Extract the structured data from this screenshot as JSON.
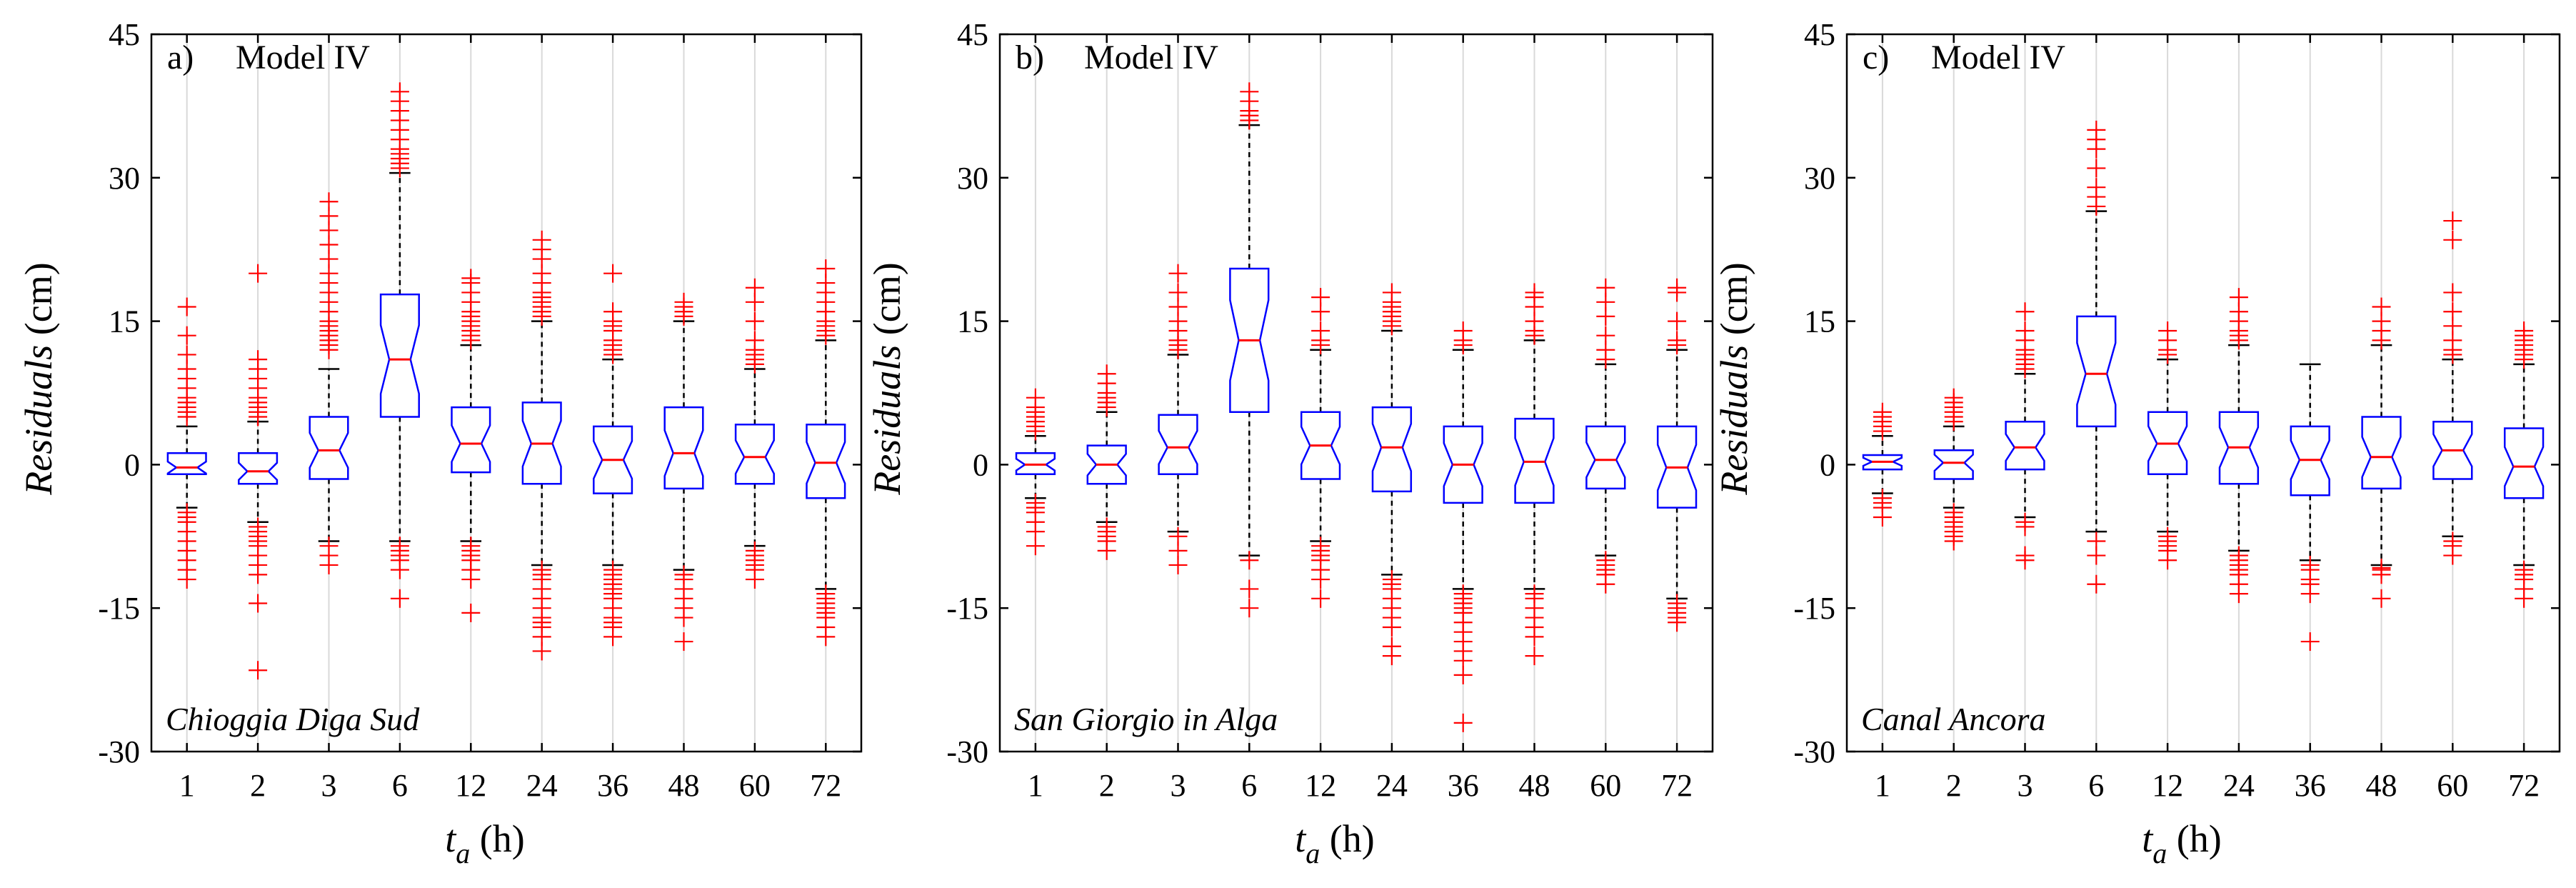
{
  "chart_data": [
    {
      "type": "boxplot",
      "panel_label": "a)",
      "model_label": "Model IV",
      "station": "Chioggia Diga Sud",
      "ylabel_italic": "Residuals",
      "ylabel_unit": "(cm)",
      "xlabel_var": "t",
      "xlabel_sub": "a",
      "xlabel_unit": "(h)",
      "ylim": [
        -30,
        45
      ],
      "yticks": [
        "-30",
        "-15",
        "0",
        "15",
        "30",
        "45"
      ],
      "categories": [
        "1",
        "2",
        "3",
        "6",
        "12",
        "24",
        "36",
        "48",
        "60",
        "72"
      ],
      "boxes": [
        {
          "q1": -1.0,
          "median": -0.3,
          "q3": 1.2,
          "wlo": -4.5,
          "whi": 4.0,
          "outliers": [
            -12,
            -11,
            -10,
            -9,
            -8,
            -7,
            -6,
            -5.5,
            -5,
            5,
            5.5,
            6,
            6.5,
            7,
            8,
            9,
            10,
            11.5,
            13.5,
            16.5
          ]
        },
        {
          "q1": -2.0,
          "median": -0.7,
          "q3": 1.2,
          "wlo": -6.0,
          "whi": 4.5,
          "outliers": [
            -21.5,
            -14.5,
            -11.5,
            -10.5,
            -9.5,
            -8.5,
            -8,
            -7.5,
            -7,
            -6.5,
            5,
            5.5,
            6,
            6.5,
            7,
            8,
            9,
            10,
            11,
            20
          ]
        },
        {
          "q1": -1.5,
          "median": 1.5,
          "q3": 5.0,
          "wlo": -8.0,
          "whi": 10.0,
          "outliers": [
            -10.5,
            -9.5,
            -8.5,
            12,
            12.5,
            13,
            13.5,
            14,
            14.5,
            15,
            16,
            17,
            18,
            19,
            20,
            21.5,
            23,
            24.5,
            26,
            27.5
          ]
        },
        {
          "q1": 5.0,
          "median": 11.0,
          "q3": 17.8,
          "wlo": -8.0,
          "whi": 30.5,
          "outliers": [
            -14,
            -11,
            -10,
            -9.5,
            -9,
            -8.5,
            31,
            31.5,
            32,
            32.5,
            33,
            34,
            35,
            36,
            37,
            38,
            39
          ]
        },
        {
          "q1": -0.8,
          "median": 2.2,
          "q3": 6.0,
          "wlo": -8.0,
          "whi": 12.5,
          "outliers": [
            -15.5,
            -12,
            -11,
            -10,
            -9.5,
            -9,
            -8.5,
            13,
            13.5,
            14,
            14.5,
            15,
            15.5,
            16,
            17,
            18,
            19,
            19.5
          ]
        },
        {
          "q1": -2.0,
          "median": 2.2,
          "q3": 6.5,
          "wlo": -10.5,
          "whi": 15.0,
          "outliers": [
            -19.5,
            -18,
            -17,
            -16.5,
            -16,
            -15,
            -14,
            -13,
            -12,
            -11.5,
            -11,
            15.5,
            16,
            16.5,
            17,
            17.5,
            18,
            19,
            20,
            21.5,
            22.5,
            23.5
          ]
        },
        {
          "q1": -3.0,
          "median": 0.5,
          "q3": 4.0,
          "wlo": -10.5,
          "whi": 11.0,
          "outliers": [
            -18,
            -17,
            -16.5,
            -16,
            -15,
            -14,
            -13.5,
            -13,
            -12.5,
            -12,
            -11.5,
            -11,
            11.5,
            12,
            12.5,
            13,
            14,
            14.5,
            15,
            16,
            20
          ]
        },
        {
          "q1": -2.5,
          "median": 1.2,
          "q3": 6.0,
          "wlo": -11.0,
          "whi": 15.0,
          "outliers": [
            -18.5,
            -16,
            -15,
            -14,
            -13,
            -12,
            -11.5,
            15.5,
            16,
            16.5,
            17
          ]
        },
        {
          "q1": -2.0,
          "median": 0.8,
          "q3": 4.2,
          "wlo": -8.5,
          "whi": 10.0,
          "outliers": [
            -12,
            -11,
            -10.5,
            -10,
            -9.5,
            -9,
            10.5,
            11,
            11.5,
            12,
            13,
            15,
            17,
            18.5
          ]
        },
        {
          "q1": -3.5,
          "median": 0.2,
          "q3": 4.2,
          "wlo": -13.0,
          "whi": 13.0,
          "outliers": [
            -18,
            -17,
            -16,
            -15.5,
            -15,
            -14.5,
            -14,
            -13.5,
            13.5,
            14,
            14.5,
            15,
            16,
            17,
            18,
            19,
            20.5
          ]
        }
      ]
    },
    {
      "type": "boxplot",
      "panel_label": "b)",
      "model_label": "Model IV",
      "station": "San Giorgio in Alga",
      "ylabel_italic": "Residuals",
      "ylabel_unit": "(cm)",
      "xlabel_var": "t",
      "xlabel_sub": "a",
      "xlabel_unit": "(h)",
      "ylim": [
        -30,
        45
      ],
      "yticks": [
        "-30",
        "-15",
        "0",
        "15",
        "30",
        "45"
      ],
      "categories": [
        "1",
        "2",
        "3",
        "6",
        "12",
        "24",
        "36",
        "48",
        "60",
        "72"
      ],
      "boxes": [
        {
          "q1": -1.0,
          "median": 0.0,
          "q3": 1.2,
          "wlo": -3.5,
          "whi": 3.0,
          "outliers": [
            -8.5,
            -7,
            -6,
            -5,
            -4.5,
            -4,
            3.5,
            4,
            4.5,
            5,
            5.5,
            6,
            7
          ]
        },
        {
          "q1": -2.0,
          "median": 0.0,
          "q3": 2.0,
          "wlo": -6.0,
          "whi": 5.5,
          "outliers": [
            -9,
            -8,
            -7.5,
            -7,
            -6.5,
            6,
            6.5,
            7,
            7.5,
            8.5,
            9.5
          ]
        },
        {
          "q1": -1.0,
          "median": 1.8,
          "q3": 5.2,
          "wlo": -7.0,
          "whi": 11.5,
          "outliers": [
            -10.5,
            -9,
            -7.5,
            12,
            12.5,
            13,
            14,
            15,
            16.5,
            18,
            20
          ]
        },
        {
          "q1": 5.5,
          "median": 13.0,
          "q3": 20.5,
          "wlo": -9.5,
          "whi": 35.5,
          "outliers": [
            -15,
            -13,
            -10,
            36,
            36.5,
            37,
            38,
            39
          ]
        },
        {
          "q1": -1.5,
          "median": 2.0,
          "q3": 5.5,
          "wlo": -8.0,
          "whi": 12.0,
          "outliers": [
            -14,
            -12,
            -11,
            -10,
            -9.5,
            -9,
            -8.5,
            12.5,
            13,
            14,
            16,
            17.5
          ]
        },
        {
          "q1": -2.8,
          "median": 1.8,
          "q3": 6.0,
          "wlo": -11.5,
          "whi": 14.0,
          "outliers": [
            -20,
            -19,
            -17,
            -16,
            -15,
            -14,
            -13,
            -12.5,
            -12,
            14.5,
            15,
            15.5,
            16,
            16.5,
            17,
            18
          ]
        },
        {
          "q1": -4.0,
          "median": 0.0,
          "q3": 4.0,
          "wlo": -13.0,
          "whi": 12.0,
          "outliers": [
            -27,
            -22,
            -20.5,
            -19.5,
            -18.5,
            -17.5,
            -16.5,
            -15.5,
            -15,
            -14.5,
            -14,
            -13.5,
            12.5,
            13,
            14
          ]
        },
        {
          "q1": -4.0,
          "median": 0.3,
          "q3": 4.8,
          "wlo": -13.0,
          "whi": 13.0,
          "outliers": [
            -20,
            -18,
            -17,
            -16,
            -15,
            -14,
            -13.5,
            13.5,
            14,
            15,
            16.5,
            17.5,
            18
          ]
        },
        {
          "q1": -2.5,
          "median": 0.5,
          "q3": 4.0,
          "wlo": -9.5,
          "whi": 10.5,
          "outliers": [
            -12.5,
            -11.5,
            -11,
            -10.5,
            -10,
            11,
            12,
            13.5,
            15.5,
            17,
            18.5
          ]
        },
        {
          "q1": -4.5,
          "median": -0.3,
          "q3": 4.0,
          "wlo": -14.0,
          "whi": 12.0,
          "outliers": [
            -16.5,
            -16,
            -15.5,
            -15,
            -14.5,
            12.5,
            13,
            15,
            18,
            18.5
          ]
        }
      ]
    },
    {
      "type": "boxplot",
      "panel_label": "c)",
      "model_label": "Model IV",
      "station": "Canal Ancora",
      "ylabel_italic": "Residuals",
      "ylabel_unit": "(cm)",
      "xlabel_var": "t",
      "xlabel_sub": "a",
      "xlabel_unit": "(h)",
      "ylim": [
        -30,
        45
      ],
      "yticks": [
        "-30",
        "-15",
        "0",
        "15",
        "30",
        "45"
      ],
      "categories": [
        "1",
        "2",
        "3",
        "6",
        "12",
        "24",
        "36",
        "48",
        "60",
        "72"
      ],
      "boxes": [
        {
          "q1": -0.5,
          "median": 0.3,
          "q3": 1.0,
          "wlo": -3.0,
          "whi": 3.0,
          "outliers": [
            -5.5,
            -4.5,
            -4,
            -3.5,
            3.5,
            4,
            4.5,
            5,
            5.5
          ]
        },
        {
          "q1": -1.5,
          "median": 0.2,
          "q3": 1.5,
          "wlo": -4.5,
          "whi": 4.0,
          "outliers": [
            -8,
            -7.5,
            -7,
            -6.5,
            -6,
            -5.5,
            -5,
            4.5,
            5,
            5.5,
            6,
            6.5,
            7
          ]
        },
        {
          "q1": -0.5,
          "median": 1.8,
          "q3": 4.5,
          "wlo": -5.5,
          "whi": 9.5,
          "outliers": [
            -10,
            -9.5,
            -6.5,
            -6,
            10,
            10.5,
            11,
            11.5,
            12,
            13,
            14,
            16
          ]
        },
        {
          "q1": 4.0,
          "median": 9.5,
          "q3": 15.5,
          "wlo": -7.0,
          "whi": 26.5,
          "outliers": [
            -12.5,
            -9.5,
            -8,
            27,
            28,
            29,
            31,
            33,
            34,
            35
          ]
        },
        {
          "q1": -1.0,
          "median": 2.2,
          "q3": 5.5,
          "wlo": -7.0,
          "whi": 11.0,
          "outliers": [
            -10,
            -9,
            -8.5,
            -8,
            -7.5,
            11.5,
            12,
            13,
            14
          ]
        },
        {
          "q1": -2.0,
          "median": 1.8,
          "q3": 5.5,
          "wlo": -9.0,
          "whi": 12.5,
          "outliers": [
            -13.5,
            -12.5,
            -11.5,
            -11,
            -10.5,
            -10,
            -9.5,
            13,
            13.5,
            14,
            15,
            16,
            17.5
          ]
        },
        {
          "q1": -3.2,
          "median": 0.5,
          "q3": 4.0,
          "wlo": -10.0,
          "whi": 10.5,
          "outliers": [
            -18.5,
            -13.5,
            -12.5,
            -12,
            -11,
            -10.5
          ]
        },
        {
          "q1": -2.5,
          "median": 0.8,
          "q3": 5.0,
          "wlo": -10.5,
          "whi": 12.5,
          "outliers": [
            -14,
            -11.5,
            -11,
            -10.8,
            13,
            14,
            15,
            16.5
          ]
        },
        {
          "q1": -1.5,
          "median": 1.5,
          "q3": 4.5,
          "wlo": -7.5,
          "whi": 11.0,
          "outliers": [
            -9.5,
            -8.5,
            -8,
            11.5,
            12,
            13,
            14.5,
            16,
            18,
            23.5,
            25.5
          ]
        },
        {
          "q1": -3.5,
          "median": -0.2,
          "q3": 3.8,
          "wlo": -10.5,
          "whi": 10.5,
          "outliers": [
            -14,
            -13,
            -12,
            -11.5,
            -11,
            11,
            11.5,
            12,
            12.5,
            13,
            13.5,
            14
          ]
        }
      ]
    }
  ],
  "colors": {
    "box": "#0000ff",
    "median": "#ff0000",
    "outlier": "#ff0000",
    "whisker": "#000000",
    "grid": "#d9d9d9",
    "axis": "#000000"
  }
}
